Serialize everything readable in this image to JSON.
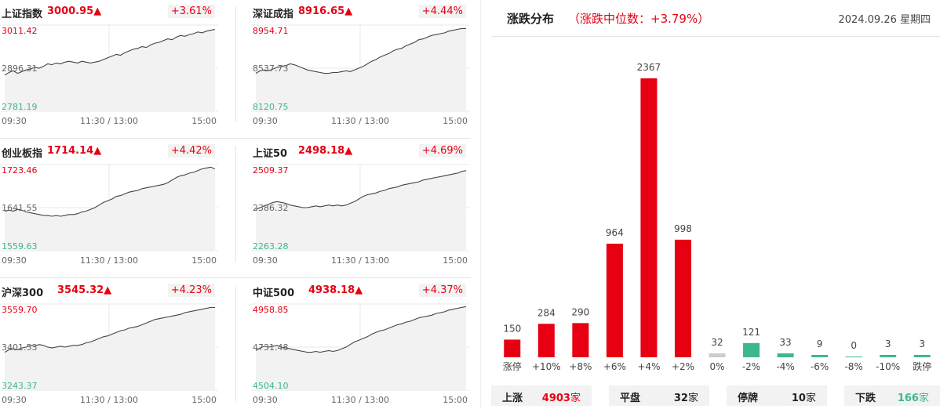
{
  "colors": {
    "up": "#e60012",
    "down": "#3cb88c",
    "flat": "#cccccc",
    "line": "#444444"
  },
  "indices": [
    {
      "name": "上证指数",
      "price": "3000.95▲",
      "pct": "+3.61%",
      "high": "3011.42",
      "mid": "2896.31",
      "low": "2781.19",
      "t_start": "09:30",
      "t_mid": "11:30 / 13:00",
      "t_end": "15:00",
      "series": [
        0.42,
        0.45,
        0.47,
        0.44,
        0.46,
        0.48,
        0.49,
        0.51,
        0.5,
        0.52,
        0.55,
        0.54,
        0.56,
        0.55,
        0.57,
        0.58,
        0.57,
        0.56,
        0.58,
        0.57,
        0.56,
        0.57,
        0.58,
        0.6,
        0.62,
        0.64,
        0.66,
        0.65,
        0.68,
        0.7,
        0.72,
        0.73,
        0.75,
        0.74,
        0.77,
        0.79,
        0.8,
        0.82,
        0.84,
        0.83,
        0.86,
        0.88,
        0.87,
        0.89,
        0.9,
        0.92,
        0.91,
        0.93,
        0.94,
        0.95
      ]
    },
    {
      "name": "深证成指",
      "price": "8916.65▲",
      "pct": "+4.44%",
      "high": "8954.71",
      "mid": "8537.73",
      "low": "8120.75",
      "t_start": "09:30",
      "t_mid": "11:30 / 13:00",
      "t_end": "15:00",
      "series": [
        0.44,
        0.47,
        0.48,
        0.47,
        0.49,
        0.51,
        0.52,
        0.53,
        0.55,
        0.54,
        0.52,
        0.5,
        0.48,
        0.47,
        0.46,
        0.45,
        0.44,
        0.44,
        0.45,
        0.45,
        0.46,
        0.47,
        0.46,
        0.48,
        0.5,
        0.52,
        0.55,
        0.58,
        0.6,
        0.63,
        0.65,
        0.67,
        0.7,
        0.72,
        0.73,
        0.76,
        0.78,
        0.8,
        0.83,
        0.84,
        0.86,
        0.88,
        0.89,
        0.9,
        0.91,
        0.93,
        0.94,
        0.95,
        0.96,
        0.96
      ]
    },
    {
      "name": "创业板指",
      "price": "1714.14▲",
      "pct": "+4.42%",
      "high": "1723.46",
      "mid": "1641.55",
      "low": "1559.63",
      "t_start": "09:30",
      "t_mid": "11:30 / 13:00",
      "t_end": "15:00",
      "series": [
        0.46,
        0.47,
        0.46,
        0.48,
        0.47,
        0.45,
        0.44,
        0.43,
        0.42,
        0.41,
        0.41,
        0.4,
        0.41,
        0.4,
        0.41,
        0.42,
        0.42,
        0.43,
        0.45,
        0.46,
        0.48,
        0.5,
        0.53,
        0.56,
        0.58,
        0.6,
        0.63,
        0.64,
        0.66,
        0.68,
        0.69,
        0.7,
        0.72,
        0.73,
        0.74,
        0.75,
        0.76,
        0.77,
        0.79,
        0.82,
        0.85,
        0.87,
        0.88,
        0.9,
        0.91,
        0.93,
        0.95,
        0.96,
        0.97,
        0.95
      ]
    },
    {
      "name": "上证50",
      "price": "2498.18▲",
      "pct": "+4.69%",
      "high": "2509.37",
      "mid": "2386.32",
      "low": "2263.28",
      "t_start": "09:30",
      "t_mid": "11:30 / 13:00",
      "t_end": "15:00",
      "series": [
        0.48,
        0.5,
        0.52,
        0.54,
        0.56,
        0.57,
        0.56,
        0.55,
        0.53,
        0.52,
        0.51,
        0.5,
        0.5,
        0.51,
        0.52,
        0.51,
        0.52,
        0.53,
        0.52,
        0.53,
        0.52,
        0.53,
        0.55,
        0.57,
        0.6,
        0.63,
        0.65,
        0.66,
        0.67,
        0.69,
        0.7,
        0.72,
        0.73,
        0.74,
        0.76,
        0.77,
        0.78,
        0.79,
        0.8,
        0.82,
        0.83,
        0.84,
        0.85,
        0.86,
        0.87,
        0.88,
        0.89,
        0.9,
        0.92,
        0.93
      ]
    },
    {
      "name": "沪深300",
      "price": "3545.32▲",
      "pct": "+4.23%",
      "high": "3559.70",
      "mid": "3401.53",
      "low": "3243.37",
      "t_start": "09:30",
      "t_mid": "11:30 / 13:00",
      "t_end": "15:00",
      "series": [
        0.44,
        0.47,
        0.48,
        0.47,
        0.49,
        0.5,
        0.52,
        0.51,
        0.53,
        0.52,
        0.5,
        0.49,
        0.5,
        0.51,
        0.5,
        0.51,
        0.52,
        0.52,
        0.53,
        0.55,
        0.56,
        0.58,
        0.6,
        0.62,
        0.63,
        0.65,
        0.67,
        0.69,
        0.7,
        0.72,
        0.73,
        0.74,
        0.76,
        0.78,
        0.8,
        0.82,
        0.83,
        0.84,
        0.85,
        0.86,
        0.87,
        0.88,
        0.9,
        0.91,
        0.92,
        0.93,
        0.94,
        0.95,
        0.96,
        0.96
      ]
    },
    {
      "name": "中证500",
      "price": "4938.18▲",
      "pct": "+4.37%",
      "high": "4958.85",
      "mid": "4731.48",
      "low": "4504.10",
      "t_start": "09:30",
      "t_mid": "11:30 / 13:00",
      "t_end": "15:00",
      "series": [
        0.46,
        0.49,
        0.51,
        0.5,
        0.51,
        0.52,
        0.5,
        0.49,
        0.48,
        0.47,
        0.46,
        0.45,
        0.44,
        0.44,
        0.45,
        0.44,
        0.45,
        0.46,
        0.45,
        0.46,
        0.48,
        0.5,
        0.53,
        0.56,
        0.58,
        0.6,
        0.62,
        0.65,
        0.67,
        0.69,
        0.7,
        0.72,
        0.74,
        0.76,
        0.77,
        0.79,
        0.8,
        0.82,
        0.84,
        0.85,
        0.86,
        0.87,
        0.89,
        0.9,
        0.91,
        0.93,
        0.94,
        0.95,
        0.96,
        0.97
      ]
    }
  ],
  "distribution": {
    "title": "涨跌分布",
    "median": "（涨跌中位数：+3.79%）",
    "date": "2024.09.26 星期四"
  },
  "chart_data": {
    "type": "bar",
    "categories": [
      "涨停",
      "+10%",
      "+8%",
      "+6%",
      "+4%",
      "+2%",
      "0%",
      "-2%",
      "-4%",
      "-6%",
      "-8%",
      "-10%",
      "跌停"
    ],
    "values": [
      150,
      284,
      290,
      964,
      2367,
      998,
      32,
      121,
      33,
      9,
      0,
      3,
      3
    ],
    "direction": [
      "up",
      "up",
      "up",
      "up",
      "up",
      "up",
      "flat",
      "down",
      "down",
      "down",
      "down",
      "down",
      "down"
    ],
    "ylim": [
      0,
      2367
    ]
  },
  "summary": {
    "up": {
      "label": "上涨",
      "num": "4903",
      "unit": "家"
    },
    "flat": {
      "label": "平盘",
      "num": "32",
      "unit": "家"
    },
    "halt": {
      "label": "停牌",
      "num": "10",
      "unit": "家"
    },
    "down": {
      "label": "下跌",
      "num": "166",
      "unit": "家"
    }
  }
}
